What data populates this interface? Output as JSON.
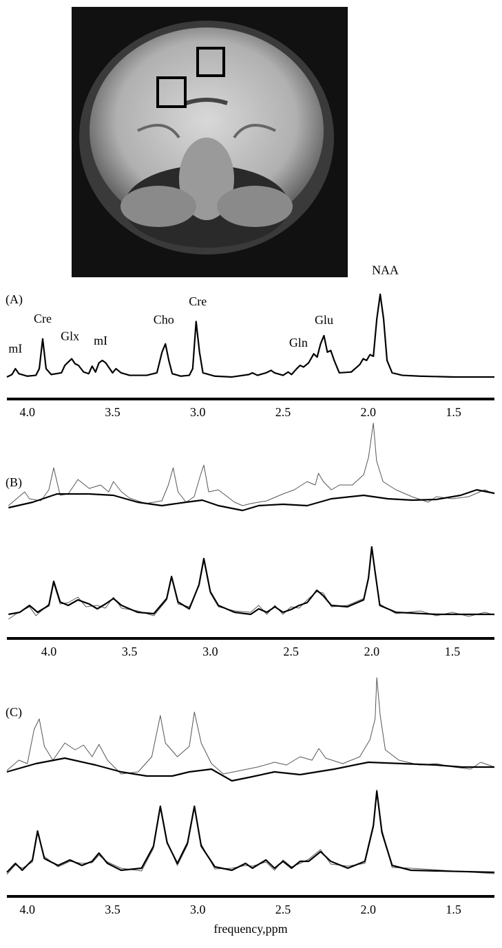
{
  "chart_data": [
    {
      "type": "line",
      "label": "(A)",
      "xlim": [
        4.12,
        1.26
      ],
      "ylim": [
        -10,
        133
      ],
      "xticks": [
        {
          "value": 4,
          "label": "4.0"
        },
        3.5,
        {
          "value": 3,
          "label": "3.0"
        },
        2.5,
        {
          "value": 2,
          "label": "2.0"
        },
        1.5
      ],
      "series": [
        {
          "color": "#000000",
          "line_width": 2.2,
          "x": [
            4.12,
            4.09,
            4.07,
            4.05,
            4.0,
            3.95,
            3.93,
            3.91,
            3.89,
            3.86,
            3.8,
            3.78,
            3.76,
            3.74,
            3.72,
            3.7,
            3.67,
            3.64,
            3.62,
            3.6,
            3.58,
            3.56,
            3.54,
            3.5,
            3.48,
            3.45,
            3.4,
            3.3,
            3.24,
            3.21,
            3.19,
            3.17,
            3.15,
            3.1,
            3.05,
            3.03,
            3.01,
            2.99,
            2.97,
            2.9,
            2.8,
            2.7,
            2.68,
            2.65,
            2.6,
            2.57,
            2.55,
            2.5,
            2.47,
            2.45,
            2.42,
            2.4,
            2.38,
            2.35,
            2.32,
            2.3,
            2.28,
            2.26,
            2.24,
            2.22,
            2.2,
            2.17,
            2.1,
            2.05,
            2.03,
            2.01,
            1.99,
            1.97,
            1.95,
            1.93,
            1.91,
            1.89,
            1.86,
            1.8,
            1.7,
            1.5,
            1.26
          ],
          "values": [
            0,
            3,
            10,
            4,
            1,
            2,
            10,
            46,
            10,
            3,
            5,
            14,
            18,
            22,
            16,
            14,
            6,
            4,
            13,
            6,
            17,
            20,
            17,
            5,
            10,
            5,
            2,
            2,
            5,
            30,
            40,
            20,
            4,
            1,
            2,
            10,
            67,
            30,
            5,
            1,
            0,
            3,
            5,
            2,
            5,
            8,
            5,
            2,
            6,
            3,
            10,
            14,
            12,
            17,
            28,
            24,
            40,
            50,
            30,
            32,
            20,
            5,
            6,
            15,
            22,
            20,
            27,
            25,
            70,
            100,
            70,
            20,
            5,
            2,
            1,
            0,
            0
          ]
        }
      ],
      "annotations": [
        {
          "text": "mI",
          "x": 4.07,
          "y": 33
        },
        {
          "text": "Cre",
          "x": 3.91,
          "y": 69
        },
        {
          "text": "Glx",
          "x": 3.75,
          "y": 48
        },
        {
          "text": "mI",
          "x": 3.57,
          "y": 42.5
        },
        {
          "text": "Cho",
          "x": 3.2,
          "y": 68
        },
        {
          "text": "Cre",
          "x": 3.0,
          "y": 90
        },
        {
          "text": "Gln",
          "x": 2.41,
          "y": 40
        },
        {
          "text": "Glu",
          "x": 2.26,
          "y": 67.5
        },
        {
          "text": "NAA",
          "x": 1.9,
          "y": 127.5
        }
      ]
    },
    {
      "type": "line",
      "label": "(B)",
      "xlim": [
        4.26,
        1.24
      ],
      "ylim": [
        -10,
        132
      ],
      "series": [
        {
          "color": "#555555",
          "line_width": 1,
          "x": [
            4.25,
            4.15,
            4.12,
            4.05,
            4.0,
            3.97,
            3.93,
            3.88,
            3.82,
            3.75,
            3.68,
            3.63,
            3.6,
            3.55,
            3.5,
            3.4,
            3.3,
            3.26,
            3.23,
            3.2,
            3.15,
            3.1,
            3.06,
            3.04,
            3.01,
            2.95,
            2.85,
            2.8,
            2.75,
            2.65,
            2.55,
            2.48,
            2.4,
            2.35,
            2.33,
            2.3,
            2.25,
            2.2,
            2.12,
            2.05,
            2.02,
            1.99,
            1.97,
            1.93,
            1.85,
            1.75,
            1.65,
            1.6,
            1.5,
            1.4,
            1.3,
            1.24
          ],
          "values": [
            5,
            25,
            15,
            12,
            28,
            60,
            20,
            22,
            43,
            30,
            35,
            25,
            40,
            25,
            16,
            8,
            12,
            35,
            60,
            25,
            10,
            18,
            50,
            64,
            25,
            28,
            10,
            5,
            8,
            12,
            22,
            28,
            40,
            35,
            52,
            40,
            28,
            35,
            35,
            50,
            75,
            125,
            70,
            40,
            28,
            18,
            10,
            18,
            15,
            18,
            28,
            22
          ]
        },
        {
          "color": "#000000",
          "line_width": 2.2,
          "x": [
            4.25,
            4.1,
            3.95,
            3.75,
            3.6,
            3.45,
            3.3,
            3.15,
            3.05,
            2.95,
            2.8,
            2.7,
            2.55,
            2.4,
            2.25,
            2.05,
            1.9,
            1.75,
            1.6,
            1.45,
            1.35,
            1.24
          ],
          "values": [
            2,
            10,
            22,
            22,
            20,
            10,
            5,
            10,
            13,
            5,
            -2,
            5,
            7,
            5,
            15,
            20,
            15,
            13,
            14,
            20,
            28,
            23
          ]
        }
      ]
    },
    {
      "type": "line",
      "xlim": [
        4.26,
        1.24
      ],
      "ylim": [
        -12,
        103
      ],
      "xticks": [
        {
          "value": 4,
          "label": "4.0"
        },
        3.5,
        {
          "value": 3,
          "label": "3.0"
        },
        2.5,
        {
          "value": 2,
          "label": "2.0"
        },
        1.5
      ],
      "series": [
        {
          "color": "#555555",
          "line_width": 1,
          "x": [
            4.25,
            4.2,
            4.12,
            4.08,
            4.0,
            3.97,
            3.93,
            3.88,
            3.82,
            3.77,
            3.7,
            3.65,
            3.6,
            3.55,
            3.45,
            3.35,
            3.27,
            3.24,
            3.2,
            3.13,
            3.07,
            3.04,
            3.0,
            2.95,
            2.85,
            2.75,
            2.7,
            2.65,
            2.6,
            2.55,
            2.5,
            2.45,
            2.4,
            2.34,
            2.3,
            2.25,
            2.15,
            2.05,
            2.02,
            2.0,
            1.98,
            1.95,
            1.85,
            1.7,
            1.6,
            1.5,
            1.4,
            1.3,
            1.24
          ],
          "values": [
            -7,
            1,
            11,
            -2,
            15,
            45,
            15,
            17,
            25,
            11,
            13,
            9,
            25,
            9,
            5,
            -2,
            21,
            53,
            15,
            11,
            41,
            78,
            31,
            11,
            5,
            3,
            13,
            0,
            13,
            0,
            11,
            9,
            21,
            33,
            31,
            11,
            13,
            23,
            51,
            96,
            61,
            15,
            1,
            5,
            -2,
            3,
            -3,
            3,
            -1
          ]
        },
        {
          "color": "#000000",
          "line_width": 2.2,
          "x": [
            4.25,
            4.18,
            4.12,
            4.07,
            4.0,
            3.97,
            3.93,
            3.88,
            3.82,
            3.75,
            3.7,
            3.65,
            3.6,
            3.55,
            3.45,
            3.35,
            3.27,
            3.24,
            3.2,
            3.13,
            3.07,
            3.04,
            3.0,
            2.95,
            2.85,
            2.75,
            2.7,
            2.65,
            2.6,
            2.55,
            2.5,
            2.45,
            2.4,
            2.34,
            2.3,
            2.25,
            2.15,
            2.05,
            2.02,
            2.0,
            1.98,
            1.95,
            1.85,
            1.6,
            1.24
          ],
          "values": [
            0,
            3,
            13,
            3,
            13,
            48,
            18,
            13,
            21,
            15,
            8,
            15,
            23,
            13,
            3,
            1,
            23,
            55,
            18,
            8,
            43,
            81,
            33,
            13,
            3,
            0,
            8,
            3,
            11,
            3,
            7,
            13,
            17,
            35,
            27,
            13,
            11,
            21,
            53,
            98,
            63,
            13,
            3,
            0,
            0
          ]
        }
      ]
    },
    {
      "type": "line",
      "label": "(C)",
      "xlim": [
        4.12,
        1.26
      ],
      "ylim": [
        -10,
        155
      ],
      "series": [
        {
          "color": "#555555",
          "line_width": 1,
          "x": [
            4.12,
            4.05,
            4.0,
            3.96,
            3.93,
            3.9,
            3.85,
            3.78,
            3.72,
            3.67,
            3.62,
            3.58,
            3.53,
            3.45,
            3.35,
            3.27,
            3.22,
            3.19,
            3.12,
            3.05,
            3.02,
            2.98,
            2.92,
            2.85,
            2.75,
            2.65,
            2.55,
            2.48,
            2.4,
            2.33,
            2.29,
            2.25,
            2.15,
            2.05,
            1.99,
            1.96,
            1.95,
            1.93,
            1.9,
            1.82,
            1.7,
            1.6,
            1.5,
            1.4,
            1.34,
            1.26
          ],
          "values": [
            10,
            25,
            20,
            70,
            85,
            45,
            25,
            50,
            40,
            47,
            30,
            48,
            25,
            5,
            8,
            30,
            90,
            50,
            30,
            45,
            95,
            50,
            20,
            5,
            10,
            15,
            22,
            18,
            30,
            25,
            42,
            28,
            20,
            30,
            55,
            85,
            145,
            90,
            40,
            25,
            18,
            20,
            15,
            12,
            22,
            15
          ]
        },
        {
          "color": "#000000",
          "line_width": 2.2,
          "x": [
            4.12,
            3.95,
            3.78,
            3.6,
            3.45,
            3.3,
            3.15,
            3.05,
            2.92,
            2.8,
            2.7,
            2.55,
            2.4,
            2.2,
            2.0,
            1.8,
            1.6,
            1.45,
            1.26
          ],
          "values": [
            8,
            20,
            28,
            18,
            8,
            2,
            2,
            8,
            12,
            -5,
            0,
            8,
            4,
            12,
            22,
            20,
            18,
            15,
            15
          ]
        }
      ]
    },
    {
      "type": "line",
      "xlim": [
        4.12,
        1.26
      ],
      "ylim": [
        -12,
        123
      ],
      "xlabel": "frequency,ppm",
      "xticks": [
        {
          "value": 4,
          "label": "4.0"
        },
        3.5,
        {
          "value": 3,
          "label": "3.0"
        },
        2.5,
        {
          "value": 2,
          "label": "2.0"
        },
        1.5
      ],
      "series": [
        {
          "color": "#555555",
          "line_width": 1,
          "x": [
            4.12,
            4.07,
            4.03,
            3.97,
            3.94,
            3.9,
            3.82,
            3.75,
            3.68,
            3.62,
            3.58,
            3.53,
            3.45,
            3.33,
            3.26,
            3.22,
            3.18,
            3.12,
            3.06,
            3.02,
            2.98,
            2.9,
            2.8,
            2.72,
            2.68,
            2.6,
            2.55,
            2.5,
            2.45,
            2.4,
            2.35,
            2.28,
            2.22,
            2.12,
            2.02,
            1.97,
            1.95,
            1.92,
            1.86,
            1.75,
            1.26
          ],
          "values": [
            -3,
            11,
            6,
            15,
            57,
            23,
            8,
            16,
            13,
            14,
            25,
            15,
            6,
            2,
            35,
            93,
            45,
            10,
            40,
            94,
            41,
            5,
            6,
            10,
            9,
            15,
            3,
            18,
            8,
            13,
            19,
            33,
            12,
            9,
            13,
            65,
            120,
            62,
            7,
            6,
            -2
          ]
        },
        {
          "color": "#000000",
          "line_width": 2.2,
          "x": [
            4.12,
            4.07,
            4.03,
            3.97,
            3.94,
            3.9,
            3.82,
            3.75,
            3.68,
            3.62,
            3.58,
            3.53,
            3.45,
            3.33,
            3.26,
            3.22,
            3.18,
            3.12,
            3.06,
            3.02,
            2.98,
            2.9,
            2.8,
            2.72,
            2.68,
            2.6,
            2.55,
            2.5,
            2.45,
            2.4,
            2.35,
            2.28,
            2.22,
            2.12,
            2.02,
            1.97,
            1.95,
            1.92,
            1.86,
            1.75,
            1.26
          ],
          "values": [
            0,
            13,
            3,
            18,
            60,
            20,
            10,
            18,
            10,
            16,
            28,
            13,
            3,
            6,
            38,
            96,
            43,
            13,
            43,
            96,
            38,
            8,
            3,
            13,
            6,
            18,
            6,
            16,
            6,
            16,
            16,
            30,
            16,
            6,
            16,
            68,
            118,
            58,
            10,
            3,
            0
          ]
        }
      ]
    }
  ]
}
